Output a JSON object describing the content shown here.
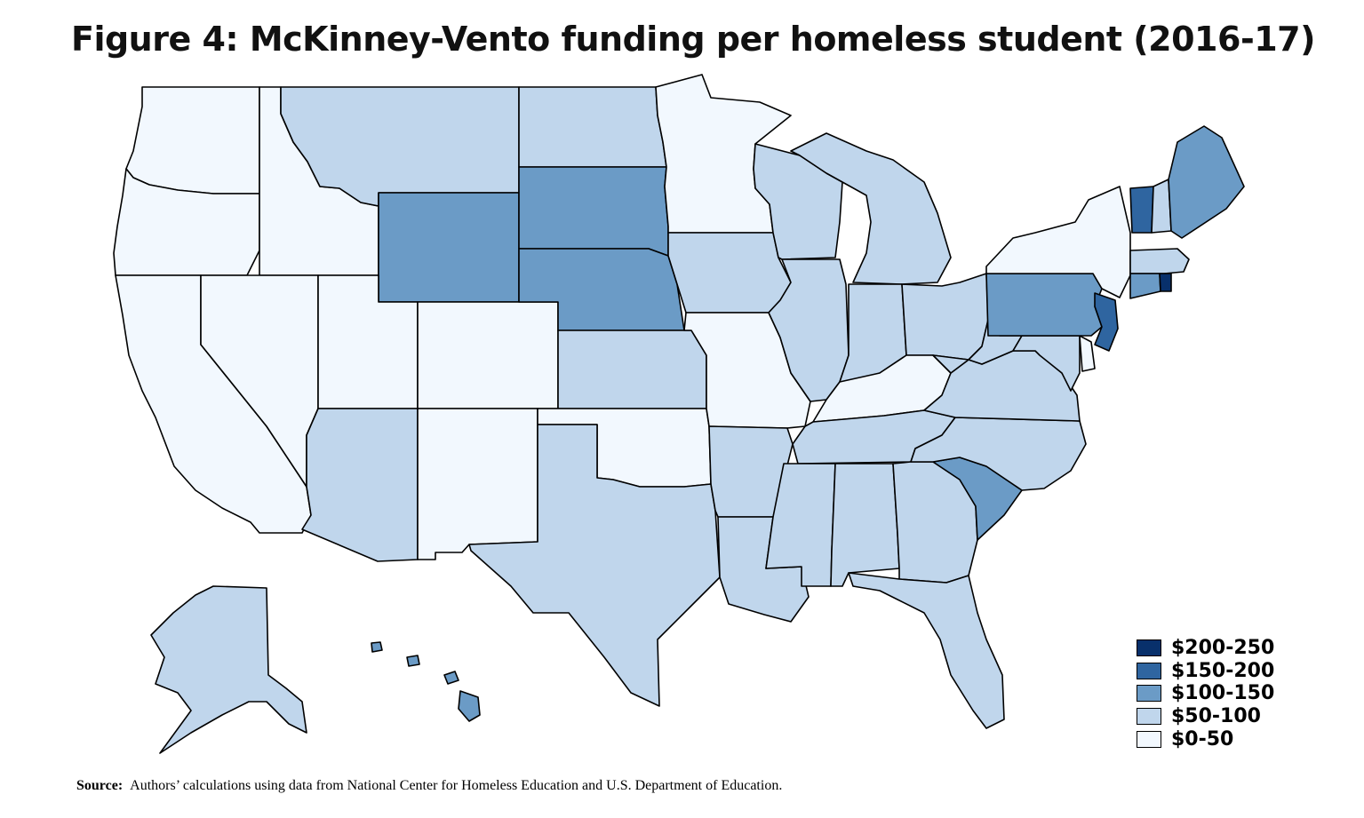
{
  "title": "Figure 4: McKinney-Vento funding per homeless student (2016-17)",
  "legend": {
    "items": [
      {
        "label": "$200-250",
        "color": "#08306b"
      },
      {
        "label": "$150-200",
        "color": "#2f65a0"
      },
      {
        "label": "$100-150",
        "color": "#6b9bc6"
      },
      {
        "label": "$50-100",
        "color": "#c0d6ec"
      },
      {
        "label": "$0-50",
        "color": "#f2f8fe"
      }
    ]
  },
  "map_data": {
    "metric": "McKinney-Vento funding per homeless student",
    "year": "2016-17",
    "states": {
      "WA": "$0-50",
      "OR": "$0-50",
      "CA": "$0-50",
      "ID": "$0-50",
      "NV": "$0-50",
      "UT": "$0-50",
      "CO": "$0-50",
      "NM": "$0-50",
      "OK": "$0-50",
      "MN": "$0-50",
      "MO": "$0-50",
      "KY": "$0-50",
      "NY": "$0-50",
      "DE": "$0-50",
      "MT": "$50-100",
      "ND": "$50-100",
      "AZ": "$50-100",
      "KS": "$50-100",
      "TX": "$50-100",
      "IA": "$50-100",
      "AR": "$50-100",
      "LA": "$50-100",
      "WI": "$50-100",
      "IL": "$50-100",
      "MI": "$50-100",
      "IN": "$50-100",
      "OH": "$50-100",
      "TN": "$50-100",
      "MS": "$50-100",
      "AL": "$50-100",
      "GA": "$50-100",
      "FL": "$50-100",
      "WV": "$50-100",
      "VA": "$50-100",
      "NC": "$50-100",
      "MD": "$50-100",
      "NH": "$50-100",
      "MA": "$50-100",
      "AK": "$50-100",
      "WY": "$100-150",
      "SD": "$100-150",
      "NE": "$100-150",
      "SC": "$100-150",
      "PA": "$100-150",
      "ME": "$100-150",
      "CT": "$100-150",
      "HI": "$100-150",
      "VT": "$150-200",
      "NJ": "$150-200",
      "RI": "$200-250"
    }
  },
  "source": {
    "label": "Source:",
    "text": "Authors’ calculations using data from National Center for Homeless Education and U.S. Department of Education."
  }
}
